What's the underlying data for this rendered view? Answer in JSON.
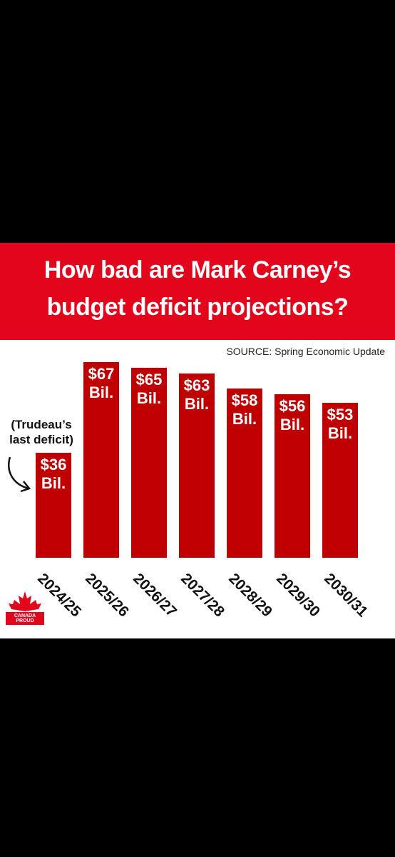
{
  "chart_data": {
    "type": "bar",
    "title": "How bad are Mark Carney’s budget deficit projections?",
    "source": "SOURCE: Spring Economic Update",
    "annotation": "(Trudeau’s last deficit)",
    "logo": "CANADA PROUD",
    "categories": [
      "2024/25",
      "2025/26",
      "2026/27",
      "2027/28",
      "2028/29",
      "2029/30",
      "2030/31"
    ],
    "values": [
      36,
      67,
      65,
      63,
      58,
      56,
      53
    ],
    "value_labels": [
      "$36 Bil.",
      "$67 Bil.",
      "$65 Bil.",
      "$63 Bil.",
      "$58 Bil.",
      "$56 Bil.",
      "$53 Bil."
    ],
    "color": "#c00000"
  }
}
